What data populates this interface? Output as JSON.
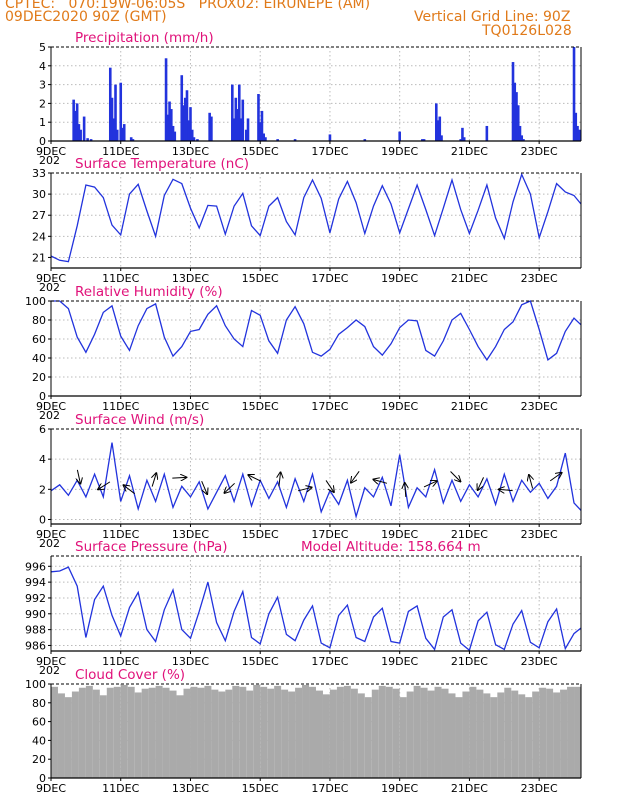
{
  "header": {
    "line1": "CPTEC:   070:19W-06:05S   PROX02: EIRUNEPE (AM)",
    "line2_left": "09DEC2020 90Z (GMT)",
    "line2_right": "Vertical Grid Line: 90Z",
    "line3_right": "TQ0126L028"
  },
  "colors": {
    "header": "#e07a1a",
    "title": "#e0127a",
    "series": "#2233dd",
    "cloud": "#aaaaaa",
    "grid": "#bbbbbb"
  },
  "x_axis": {
    "ticks": [
      "9DEC",
      "11DEC",
      "13DEC",
      "15DEC",
      "17DEC",
      "19DEC",
      "21DEC",
      "23DEC"
    ],
    "tick_days": [
      0,
      2,
      4,
      6,
      8,
      10,
      12,
      14
    ],
    "range_days": [
      0,
      15.2
    ],
    "cut_label": "202"
  },
  "panels": [
    {
      "id": "precip",
      "title": "Precipitation (mm/h)",
      "yticks": [
        0,
        1,
        2,
        3,
        4,
        5
      ],
      "ylim": [
        0,
        5
      ]
    },
    {
      "id": "temp",
      "title": "Surface Temperature (nC)",
      "yticks": [
        21,
        24,
        27,
        30,
        33
      ],
      "ylim": [
        19.5,
        33
      ]
    },
    {
      "id": "rh",
      "title": "Relative Humidity (%)",
      "yticks": [
        0,
        20,
        40,
        60,
        80,
        100
      ],
      "ylim": [
        0,
        100
      ]
    },
    {
      "id": "wind",
      "title": "Surface Wind (m/s)",
      "yticks": [
        0,
        2,
        4,
        6
      ],
      "ylim": [
        -0.3,
        6
      ]
    },
    {
      "id": "press",
      "title": "Surface Pressure (hPa)",
      "extra": "Model Altitude: 158.664 m",
      "yticks": [
        986,
        988,
        990,
        992,
        994,
        996
      ],
      "ylim": [
        985.3,
        997.3
      ]
    },
    {
      "id": "cloud",
      "title": "Cloud Cover (%)",
      "yticks": [
        0,
        20,
        40,
        60,
        80,
        100
      ],
      "ylim": [
        0,
        100
      ]
    }
  ],
  "chart_data": [
    {
      "type": "bar",
      "title": "Precipitation (mm/h)",
      "unit": "mm/h",
      "ylim": [
        0,
        5
      ],
      "x": [
        0.65,
        0.7,
        0.75,
        0.8,
        0.85,
        0.95,
        1.05,
        1.15,
        1.7,
        1.75,
        1.8,
        1.85,
        1.9,
        2.0,
        2.05,
        2.1,
        2.3,
        2.35,
        3.3,
        3.35,
        3.4,
        3.45,
        3.5,
        3.55,
        3.75,
        3.8,
        3.85,
        3.9,
        3.95,
        4.0,
        4.05,
        4.1,
        4.2,
        4.55,
        4.6,
        5.2,
        5.25,
        5.3,
        5.35,
        5.4,
        5.45,
        5.5,
        5.6,
        5.65,
        5.95,
        6.0,
        6.05,
        6.1,
        6.15,
        6.5,
        7.0,
        8.0,
        9.0,
        10.0,
        10.65,
        10.7,
        11.05,
        11.1,
        11.15,
        11.2,
        11.75,
        11.8,
        11.85,
        12.5,
        13.25,
        13.3,
        13.35,
        13.4,
        13.45,
        13.5,
        13.55,
        15.0,
        15.05,
        15.1,
        15.15
      ],
      "values": [
        2.2,
        1.6,
        2.0,
        0.9,
        0.6,
        1.3,
        0.15,
        0.1,
        3.9,
        2.3,
        1.2,
        3.0,
        0.6,
        3.1,
        0.7,
        0.9,
        0.2,
        0.1,
        4.4,
        1.4,
        2.1,
        1.7,
        0.8,
        0.5,
        3.5,
        1.9,
        2.3,
        2.7,
        1.1,
        1.8,
        0.6,
        0.2,
        0.1,
        1.5,
        1.3,
        3.0,
        1.2,
        2.3,
        1.7,
        3.0,
        1.2,
        2.2,
        0.6,
        1.2,
        2.5,
        1.0,
        1.6,
        0.4,
        0.2,
        0.1,
        0.1,
        0.35,
        0.1,
        0.5,
        0.1,
        0.1,
        2.0,
        1.1,
        1.3,
        0.3,
        0.1,
        0.7,
        0.2,
        0.8,
        4.2,
        3.1,
        2.6,
        1.9,
        0.8,
        0.3,
        0.1,
        5.0,
        1.5,
        0.8,
        0.6
      ]
    },
    {
      "type": "line",
      "title": "Surface Temperature (nC)",
      "unit": "°C",
      "ylim": [
        19.5,
        33
      ],
      "x": [
        0,
        0.25,
        0.5,
        0.75,
        1.0,
        1.25,
        1.5,
        1.75,
        2.0,
        2.25,
        2.5,
        2.75,
        3.0,
        3.25,
        3.5,
        3.75,
        4.0,
        4.25,
        4.5,
        4.75,
        5.0,
        5.25,
        5.5,
        5.75,
        6.0,
        6.25,
        6.5,
        6.75,
        7.0,
        7.25,
        7.5,
        7.75,
        8.0,
        8.25,
        8.5,
        8.75,
        9.0,
        9.25,
        9.5,
        9.75,
        10.0,
        10.25,
        10.5,
        10.75,
        11.0,
        11.25,
        11.5,
        11.75,
        12.0,
        12.25,
        12.5,
        12.75,
        13.0,
        13.25,
        13.5,
        13.75,
        14.0,
        14.25,
        14.5,
        14.75,
        15.0,
        15.2
      ],
      "values": [
        21.2,
        20.6,
        20.4,
        25.5,
        31.3,
        31.0,
        29.5,
        25.6,
        24.2,
        30.0,
        31.4,
        27.6,
        24.0,
        29.8,
        32.1,
        31.5,
        28.0,
        25.2,
        28.4,
        28.3,
        24.3,
        28.3,
        30.1,
        25.5,
        24.1,
        28.3,
        29.5,
        26.1,
        24.2,
        29.5,
        32.0,
        29.4,
        24.5,
        29.3,
        31.8,
        28.8,
        24.4,
        28.3,
        31.2,
        28.6,
        24.5,
        27.9,
        31.3,
        27.8,
        24.1,
        28.0,
        32.0,
        27.8,
        24.4,
        27.7,
        31.3,
        26.6,
        23.7,
        28.9,
        32.8,
        30.0,
        23.8,
        27.5,
        31.5,
        30.3,
        29.8,
        28.6
      ]
    },
    {
      "type": "line",
      "title": "Relative Humidity (%)",
      "unit": "%",
      "ylim": [
        0,
        100
      ],
      "x": [
        0,
        0.25,
        0.5,
        0.75,
        1.0,
        1.25,
        1.5,
        1.75,
        2.0,
        2.25,
        2.5,
        2.75,
        3.0,
        3.25,
        3.5,
        3.75,
        4.0,
        4.25,
        4.5,
        4.75,
        5.0,
        5.25,
        5.5,
        5.75,
        6.0,
        6.25,
        6.5,
        6.75,
        7.0,
        7.25,
        7.5,
        7.75,
        8.0,
        8.25,
        8.5,
        8.75,
        9.0,
        9.25,
        9.5,
        9.75,
        10.0,
        10.25,
        10.5,
        10.75,
        11.0,
        11.25,
        11.5,
        11.75,
        12.0,
        12.25,
        12.5,
        12.75,
        13.0,
        13.25,
        13.5,
        13.75,
        14.0,
        14.25,
        14.5,
        14.75,
        15.0,
        15.2
      ],
      "values": [
        100,
        100,
        92,
        62,
        46,
        65,
        88,
        95,
        63,
        48,
        74,
        92,
        97,
        62,
        42,
        52,
        68,
        70,
        86,
        95,
        74,
        60,
        52,
        90,
        85,
        58,
        45,
        80,
        94,
        76,
        46,
        42,
        49,
        65,
        72,
        80,
        73,
        52,
        43,
        55,
        72,
        80,
        79,
        48,
        42,
        58,
        80,
        87,
        70,
        52,
        38,
        52,
        70,
        78,
        96,
        100,
        70,
        38,
        45,
        68,
        82,
        75
      ]
    },
    {
      "type": "line",
      "title": "Surface Wind (m/s)",
      "unit": "m/s",
      "ylim": [
        -0.3,
        6
      ],
      "x": [
        0,
        0.25,
        0.5,
        0.75,
        1.0,
        1.25,
        1.5,
        1.75,
        2.0,
        2.25,
        2.5,
        2.75,
        3.0,
        3.25,
        3.5,
        3.75,
        4.0,
        4.25,
        4.5,
        4.75,
        5.0,
        5.25,
        5.5,
        5.75,
        6.0,
        6.25,
        6.5,
        6.75,
        7.0,
        7.25,
        7.5,
        7.75,
        8.0,
        8.25,
        8.5,
        8.75,
        9.0,
        9.25,
        9.5,
        9.75,
        10.0,
        10.25,
        10.5,
        10.75,
        11.0,
        11.25,
        11.5,
        11.75,
        12.0,
        12.25,
        12.5,
        12.75,
        13.0,
        13.25,
        13.5,
        13.75,
        14.0,
        14.25,
        14.5,
        14.75,
        15.0,
        15.2
      ],
      "values": [
        1.9,
        2.3,
        1.6,
        2.6,
        1.5,
        3.0,
        1.5,
        5.1,
        1.2,
        2.9,
        0.7,
        2.6,
        1.2,
        3.0,
        0.8,
        2.2,
        1.5,
        2.5,
        0.7,
        1.8,
        2.9,
        1.2,
        3.0,
        0.9,
        2.6,
        1.4,
        2.5,
        0.8,
        2.7,
        1.2,
        3.0,
        0.5,
        1.9,
        1.0,
        2.6,
        0.2,
        2.1,
        1.5,
        2.8,
        0.9,
        4.3,
        0.8,
        2.1,
        1.5,
        3.3,
        1.1,
        2.6,
        1.2,
        2.3,
        1.5,
        2.7,
        1.0,
        3.0,
        1.2,
        2.6,
        1.8,
        2.4,
        1.4,
        2.2,
        4.4,
        1.1,
        0.6
      ]
    },
    {
      "type": "line",
      "title": "Surface Pressure (hPa)",
      "unit": "hPa",
      "ylim": [
        985.3,
        997.3
      ],
      "x": [
        0,
        0.25,
        0.5,
        0.75,
        1.0,
        1.25,
        1.5,
        1.75,
        2.0,
        2.25,
        2.5,
        2.75,
        3.0,
        3.25,
        3.5,
        3.75,
        4.0,
        4.25,
        4.5,
        4.75,
        5.0,
        5.25,
        5.5,
        5.75,
        6.0,
        6.25,
        6.5,
        6.75,
        7.0,
        7.25,
        7.5,
        7.75,
        8.0,
        8.25,
        8.5,
        8.75,
        9.0,
        9.25,
        9.5,
        9.75,
        10.0,
        10.25,
        10.5,
        10.75,
        11.0,
        11.25,
        11.5,
        11.75,
        12.0,
        12.25,
        12.5,
        12.75,
        13.0,
        13.25,
        13.5,
        13.75,
        14.0,
        14.25,
        14.5,
        14.75,
        15.0,
        15.2
      ],
      "values": [
        995.3,
        995.4,
        995.9,
        993.5,
        987.0,
        991.8,
        993.5,
        989.8,
        987.2,
        990.8,
        992.7,
        988.0,
        986.5,
        990.5,
        993.0,
        988.0,
        986.9,
        990.3,
        994.0,
        988.9,
        986.6,
        990.3,
        992.8,
        987.0,
        986.2,
        990.0,
        992.1,
        987.4,
        986.6,
        989.2,
        991.0,
        986.3,
        985.7,
        989.8,
        991.1,
        987.0,
        986.5,
        989.6,
        990.7,
        986.5,
        986.3,
        990.3,
        991.0,
        986.9,
        985.5,
        989.6,
        990.5,
        986.3,
        985.4,
        989.1,
        990.2,
        986.1,
        985.5,
        988.7,
        990.4,
        986.4,
        985.7,
        989.0,
        990.6,
        985.6,
        987.5,
        988.2
      ]
    },
    {
      "type": "area",
      "title": "Cloud Cover (%)",
      "unit": "%",
      "ylim": [
        0,
        100
      ],
      "x": [
        0,
        0.2,
        0.4,
        0.6,
        0.8,
        1.0,
        1.2,
        1.4,
        1.6,
        1.8,
        2.0,
        2.2,
        2.4,
        2.6,
        2.8,
        3.0,
        3.2,
        3.4,
        3.6,
        3.8,
        4.0,
        4.2,
        4.4,
        4.6,
        4.8,
        5.0,
        5.2,
        5.4,
        5.6,
        5.8,
        6.0,
        6.2,
        6.4,
        6.6,
        6.8,
        7.0,
        7.2,
        7.4,
        7.6,
        7.8,
        8.0,
        8.2,
        8.4,
        8.6,
        8.8,
        9.0,
        9.2,
        9.4,
        9.6,
        9.8,
        10.0,
        10.2,
        10.4,
        10.6,
        10.8,
        11.0,
        11.2,
        11.4,
        11.6,
        11.8,
        12.0,
        12.2,
        12.4,
        12.6,
        12.8,
        13.0,
        13.2,
        13.4,
        13.6,
        13.8,
        14.0,
        14.2,
        14.4,
        14.6,
        14.8,
        15.0,
        15.2
      ],
      "values": [
        97,
        90,
        86,
        92,
        96,
        98,
        94,
        88,
        96,
        97,
        99,
        97,
        91,
        95,
        96,
        98,
        96,
        93,
        88,
        95,
        97,
        96,
        98,
        94,
        92,
        94,
        98,
        97,
        93,
        99,
        97,
        95,
        98,
        94,
        92,
        96,
        99,
        97,
        93,
        89,
        94,
        97,
        98,
        95,
        90,
        86,
        94,
        98,
        97,
        95,
        86,
        92,
        98,
        96,
        93,
        97,
        95,
        90,
        86,
        92,
        97,
        94,
        90,
        86,
        91,
        96,
        93,
        89,
        86,
        92,
        96,
        95,
        91,
        94,
        97,
        97,
        98
      ]
    }
  ]
}
